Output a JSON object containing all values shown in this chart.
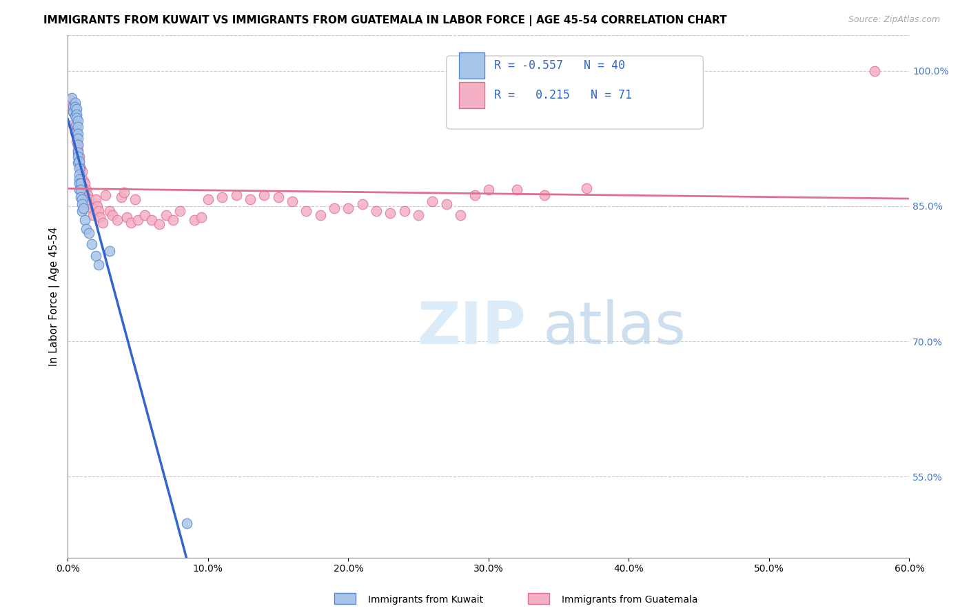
{
  "title": "IMMIGRANTS FROM KUWAIT VS IMMIGRANTS FROM GUATEMALA IN LABOR FORCE | AGE 45-54 CORRELATION CHART",
  "source": "Source: ZipAtlas.com",
  "ylabel": "In Labor Force | Age 45-54",
  "xlim": [
    0.0,
    0.6
  ],
  "ylim": [
    0.46,
    1.04
  ],
  "xtick_labels": [
    "0.0%",
    "10.0%",
    "20.0%",
    "30.0%",
    "40.0%",
    "50.0%",
    "60.0%"
  ],
  "xtick_vals": [
    0.0,
    0.1,
    0.2,
    0.3,
    0.4,
    0.5,
    0.6
  ],
  "ytick_labels_right": [
    "100.0%",
    "85.0%",
    "70.0%",
    "55.0%"
  ],
  "ytick_vals_right": [
    1.0,
    0.85,
    0.7,
    0.55
  ],
  "legend_r_kuwait": "-0.557",
  "legend_n_kuwait": "40",
  "legend_r_guatemala": "0.215",
  "legend_n_guatemala": "71",
  "color_kuwait": "#a8c4e8",
  "color_kuwait_dark": "#5588cc",
  "color_kuwait_line": "#3366cc",
  "color_guatemala": "#f4b0c4",
  "color_guatemala_dark": "#e07090",
  "color_guatemala_line": "#e07090",
  "kuwait_x": [
    0.003,
    0.004,
    0.004,
    0.005,
    0.005,
    0.005,
    0.006,
    0.006,
    0.006,
    0.006,
    0.006,
    0.007,
    0.007,
    0.007,
    0.007,
    0.007,
    0.007,
    0.007,
    0.007,
    0.008,
    0.008,
    0.008,
    0.008,
    0.008,
    0.008,
    0.009,
    0.009,
    0.009,
    0.01,
    0.01,
    0.01,
    0.011,
    0.012,
    0.013,
    0.015,
    0.017,
    0.02,
    0.022,
    0.03,
    0.085
  ],
  "kuwait_y": [
    0.97,
    0.96,
    0.955,
    0.965,
    0.96,
    0.95,
    0.958,
    0.952,
    0.948,
    0.94,
    0.932,
    0.945,
    0.938,
    0.93,
    0.925,
    0.918,
    0.91,
    0.905,
    0.898,
    0.9,
    0.892,
    0.885,
    0.88,
    0.875,
    0.868,
    0.875,
    0.868,
    0.86,
    0.858,
    0.852,
    0.845,
    0.848,
    0.835,
    0.825,
    0.82,
    0.808,
    0.795,
    0.785,
    0.8,
    0.498
  ],
  "guatemala_x": [
    0.002,
    0.003,
    0.004,
    0.004,
    0.005,
    0.005,
    0.006,
    0.006,
    0.007,
    0.007,
    0.008,
    0.008,
    0.009,
    0.01,
    0.01,
    0.011,
    0.012,
    0.013,
    0.014,
    0.015,
    0.016,
    0.017,
    0.018,
    0.02,
    0.021,
    0.022,
    0.023,
    0.025,
    0.027,
    0.03,
    0.032,
    0.035,
    0.038,
    0.04,
    0.042,
    0.045,
    0.048,
    0.05,
    0.055,
    0.06,
    0.065,
    0.07,
    0.075,
    0.08,
    0.09,
    0.095,
    0.1,
    0.11,
    0.12,
    0.13,
    0.14,
    0.15,
    0.16,
    0.17,
    0.18,
    0.19,
    0.2,
    0.21,
    0.22,
    0.23,
    0.24,
    0.25,
    0.26,
    0.27,
    0.28,
    0.29,
    0.3,
    0.32,
    0.34,
    0.37,
    0.575
  ],
  "guatemala_y": [
    0.968,
    0.96,
    0.955,
    0.94,
    0.938,
    0.932,
    0.928,
    0.922,
    0.918,
    0.912,
    0.905,
    0.895,
    0.892,
    0.888,
    0.88,
    0.878,
    0.875,
    0.868,
    0.862,
    0.858,
    0.852,
    0.848,
    0.84,
    0.858,
    0.85,
    0.845,
    0.838,
    0.832,
    0.862,
    0.845,
    0.84,
    0.835,
    0.86,
    0.865,
    0.838,
    0.832,
    0.858,
    0.835,
    0.84,
    0.835,
    0.83,
    0.84,
    0.835,
    0.845,
    0.835,
    0.838,
    0.858,
    0.86,
    0.862,
    0.858,
    0.862,
    0.86,
    0.855,
    0.845,
    0.84,
    0.848,
    0.848,
    0.852,
    0.845,
    0.842,
    0.845,
    0.84,
    0.855,
    0.852,
    0.84,
    0.862,
    0.868,
    0.868,
    0.862,
    0.87,
    1.0
  ],
  "watermark_zip": "ZIP",
  "watermark_atlas": "atlas"
}
